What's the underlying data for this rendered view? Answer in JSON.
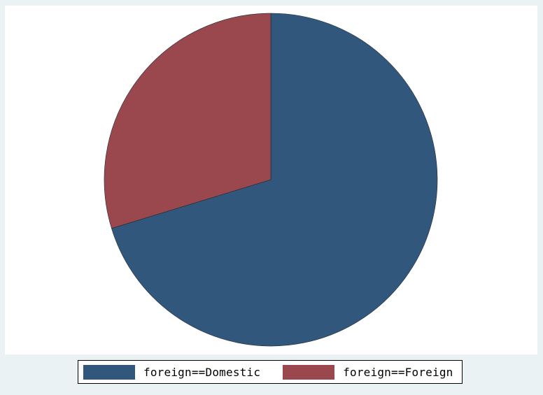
{
  "chart_data": {
    "type": "pie",
    "title": "",
    "slices": [
      {
        "label": "foreign==Domestic",
        "value": 52,
        "color": "#31587c"
      },
      {
        "label": "foreign==Foreign",
        "value": 22,
        "color": "#9a484e"
      }
    ],
    "start": "12 o'clock",
    "direction": "clockwise",
    "legend_position": "bottom"
  },
  "legend": {
    "entries": [
      {
        "label": "foreign==Domestic",
        "color": "#31587c"
      },
      {
        "label": "foreign==Foreign",
        "color": "#9a484e"
      }
    ]
  }
}
